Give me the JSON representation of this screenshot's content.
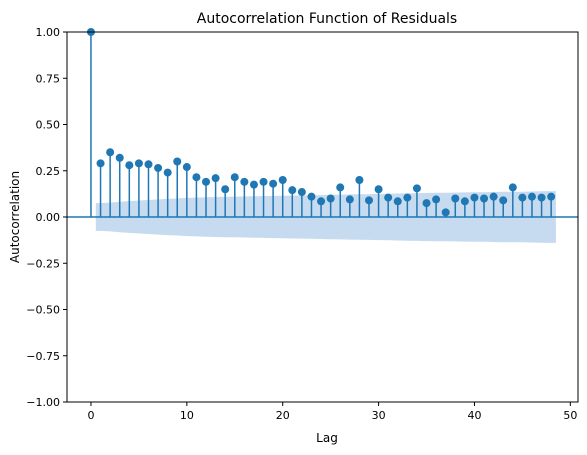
{
  "chart_data": {
    "type": "stem",
    "title": "Autocorrelation Function of Residuals",
    "xlabel": "Lag",
    "ylabel": "Autocorrelation",
    "xlim": [
      -2.5,
      50.8
    ],
    "ylim": [
      -1.0,
      1.0
    ],
    "x_ticks": [
      0,
      10,
      20,
      30,
      40,
      50
    ],
    "y_ticks": [
      -1.0,
      -0.75,
      -0.5,
      -0.25,
      0.0,
      0.25,
      0.5,
      0.75,
      1.0
    ],
    "x_tick_labels": [
      "0",
      "10",
      "20",
      "30",
      "40",
      "50"
    ],
    "y_tick_labels": [
      "−1.00",
      "−0.75",
      "−0.50",
      "−0.25",
      "0.00",
      "0.25",
      "0.50",
      "0.75",
      "1.00"
    ],
    "grid": false,
    "colors": {
      "stem": "#1f77b4",
      "band": "#c6dbef"
    },
    "lags": [
      0,
      1,
      2,
      3,
      4,
      5,
      6,
      7,
      8,
      9,
      10,
      11,
      12,
      13,
      14,
      15,
      16,
      17,
      18,
      19,
      20,
      21,
      22,
      23,
      24,
      25,
      26,
      27,
      28,
      29,
      30,
      31,
      32,
      33,
      34,
      35,
      36,
      37,
      38,
      39,
      40,
      41,
      42,
      43,
      44,
      45,
      46,
      47,
      48
    ],
    "values": [
      1.0,
      0.29,
      0.35,
      0.32,
      0.28,
      0.29,
      0.285,
      0.265,
      0.24,
      0.3,
      0.27,
      0.215,
      0.19,
      0.21,
      0.15,
      0.215,
      0.19,
      0.175,
      0.19,
      0.18,
      0.2,
      0.145,
      0.135,
      0.11,
      0.085,
      0.1,
      0.16,
      0.095,
      0.2,
      0.09,
      0.15,
      0.105,
      0.085,
      0.105,
      0.155,
      0.075,
      0.095,
      0.025,
      0.1,
      0.085,
      0.105,
      0.1,
      0.11,
      0.09,
      0.16,
      0.105,
      0.11,
      0.105,
      0.11
    ],
    "confidence_band": [
      0.075,
      0.078,
      0.082,
      0.086,
      0.089,
      0.092,
      0.095,
      0.098,
      0.1,
      0.103,
      0.105,
      0.107,
      0.108,
      0.109,
      0.11,
      0.111,
      0.112,
      0.113,
      0.114,
      0.115,
      0.116,
      0.117,
      0.118,
      0.119,
      0.12,
      0.121,
      0.122,
      0.123,
      0.124,
      0.125,
      0.126,
      0.127,
      0.128,
      0.129,
      0.13,
      0.131,
      0.131,
      0.132,
      0.133,
      0.134,
      0.134,
      0.135,
      0.136,
      0.137,
      0.137,
      0.138,
      0.139,
      0.14
    ]
  }
}
